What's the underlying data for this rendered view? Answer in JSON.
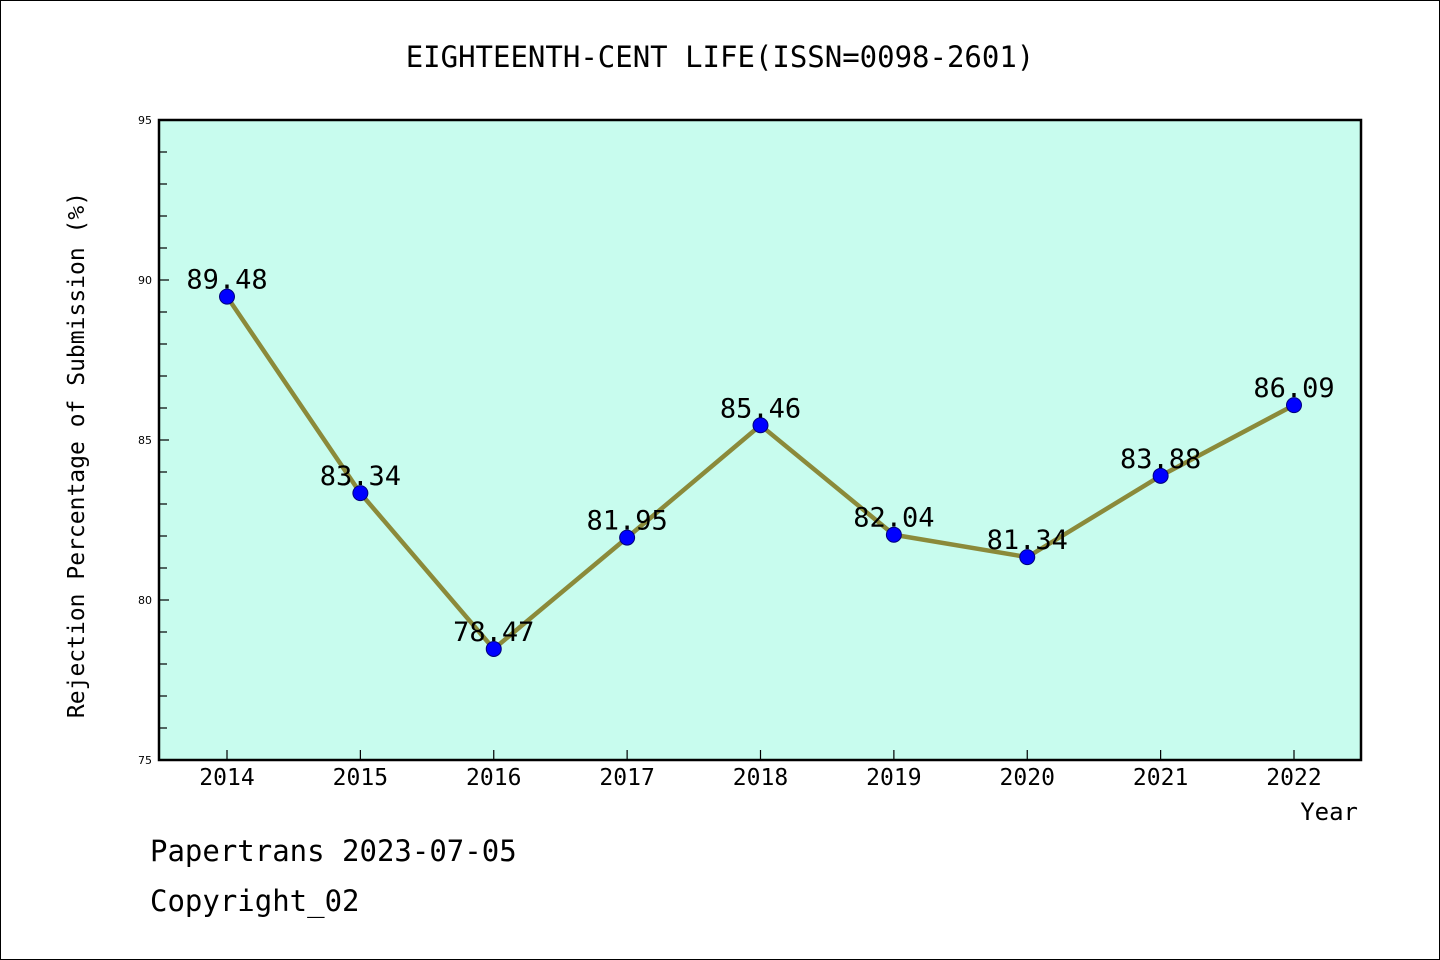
{
  "chart_data": {
    "type": "line",
    "title": "EIGHTEENTH-CENT LIFE(ISSN=0098-2601)",
    "xlabel": "Year",
    "ylabel": "Rejection Percentage of Submission (%)",
    "categories": [
      "2014",
      "2015",
      "2016",
      "2017",
      "2018",
      "2019",
      "2020",
      "2021",
      "2022"
    ],
    "values": [
      89.48,
      83.34,
      78.47,
      81.95,
      85.46,
      82.04,
      81.34,
      83.88,
      86.09
    ],
    "data_labels": [
      "89.48",
      "83.34",
      "78.47",
      "81.95",
      "85.46",
      "82.04",
      "81.34",
      "83.88",
      "86.09"
    ],
    "ylim": [
      75,
      95
    ],
    "yticks": [
      "75",
      "80",
      "85",
      "90",
      "95"
    ],
    "grid": false,
    "legend": "none",
    "colors": {
      "plot_background": "#c8fcee",
      "line": "#8b8a3a",
      "marker": "#0000ff"
    }
  },
  "footer": {
    "line1": "Papertrans 2023-07-05",
    "line2": "Copyright_02"
  }
}
